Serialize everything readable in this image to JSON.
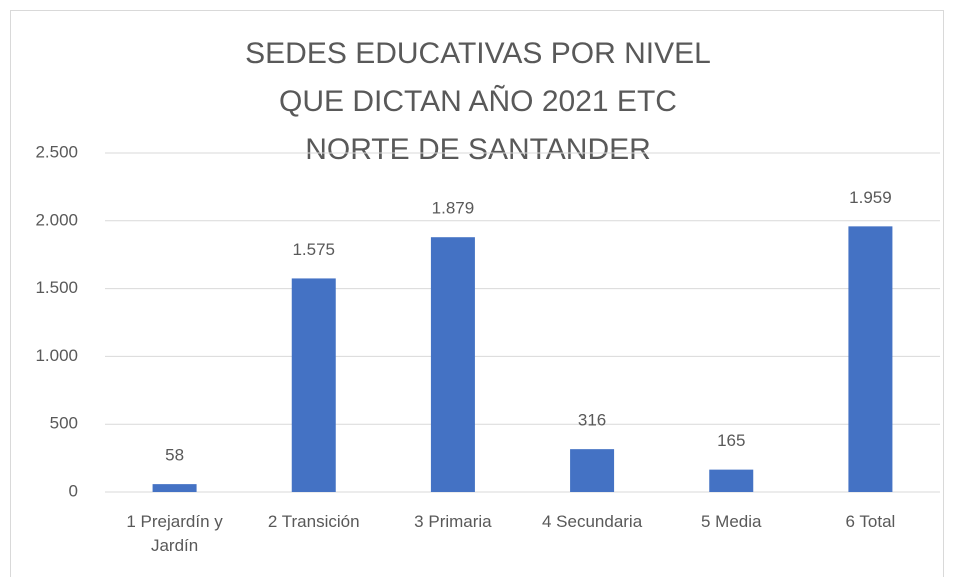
{
  "chart_data": {
    "type": "bar",
    "title": "SEDES EDUCATIVAS POR NIVEL QUE DICTAN AÑO 2021 ETC NORTE DE SANTANDER",
    "categories": [
      "1 Prejardín y Jardín",
      "2 Transición",
      "3 Primaria",
      "4 Secundaria",
      "5 Media",
      "6 Total"
    ],
    "values": [
      58,
      1575,
      1879,
      316,
      165,
      1959
    ],
    "value_labels": [
      "58",
      "1.575",
      "1.879",
      "316",
      "165",
      "1.959"
    ],
    "color": "#4472c4",
    "ylim": [
      0,
      2500
    ],
    "yticks": [
      0,
      500,
      {
        "value": 1000,
        "label": "1.000"
      },
      {
        "value": 1500,
        "label": "1.500"
      },
      {
        "value": 2000,
        "label": "2.000"
      },
      {
        "value": 2500,
        "label": "2.500"
      }
    ],
    "grid": true
  }
}
